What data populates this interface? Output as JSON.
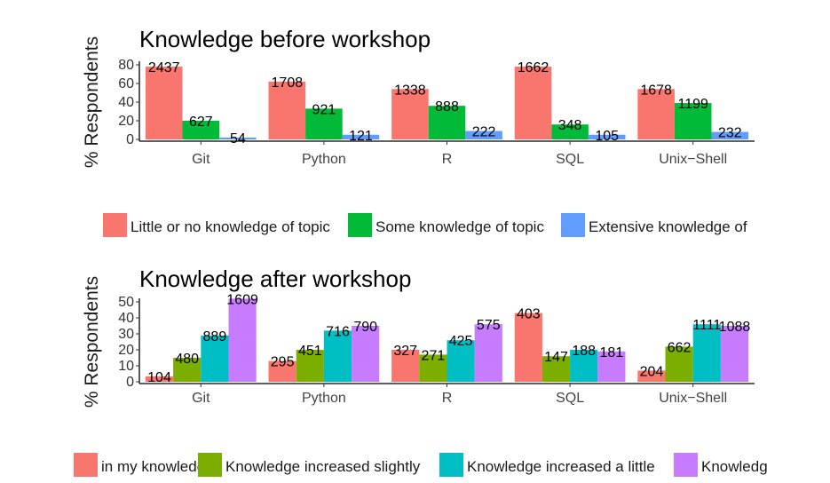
{
  "chart_data": [
    {
      "type": "bar",
      "title": "Knowledge before workshop",
      "xlabel": "",
      "ylabel": "% Respondents",
      "ylim": [
        0,
        80
      ],
      "yticks": [
        0,
        20,
        40,
        60,
        80
      ],
      "grid": false,
      "legend_position": "bottom",
      "categories": [
        "Git",
        "Python",
        "R",
        "SQL",
        "Unix−Shell"
      ],
      "series": [
        {
          "name": "Little or no knowledge of topic",
          "color": "#F8766D",
          "values": [
            78,
            62,
            54,
            78,
            54
          ],
          "labels": [
            "2437",
            "1708",
            "1338",
            "1662",
            "1678"
          ]
        },
        {
          "name": "Some knowledge of topic",
          "color": "#00BA38",
          "values": [
            20,
            33,
            36,
            16,
            39
          ],
          "labels": [
            "627",
            "921",
            "888",
            "348",
            "1199"
          ]
        },
        {
          "name": "Extensive knowledge of",
          "color": "#619CFF",
          "values": [
            2,
            5,
            9,
            5,
            8
          ],
          "labels": [
            "54",
            "121",
            "222",
            "105",
            "232"
          ]
        }
      ]
    },
    {
      "type": "bar",
      "title": "Knowledge after workshop",
      "xlabel": "",
      "ylabel": "% Respondents",
      "ylim": [
        0,
        50
      ],
      "yticks": [
        0,
        10,
        20,
        30,
        40,
        50
      ],
      "grid": false,
      "legend_position": "bottom",
      "categories": [
        "Git",
        "Python",
        "R",
        "SQL",
        "Unix−Shell"
      ],
      "series": [
        {
          "name": "in my knowledge",
          "color": "#F8766D",
          "values": [
            3.4,
            13,
            20,
            43,
            7
          ],
          "labels": [
            "104",
            "295",
            "327",
            "403",
            "204"
          ]
        },
        {
          "name": "Knowledge increased slightly",
          "color": "#7CAE00",
          "values": [
            15,
            20,
            17,
            16,
            22
          ],
          "labels": [
            "480",
            "451",
            "271",
            "147",
            "662"
          ]
        },
        {
          "name": "Knowledge increased a little",
          "color": "#00BFC4",
          "values": [
            29,
            32,
            26,
            20,
            36
          ],
          "labels": [
            "889",
            "716",
            "425",
            "188",
            "1111"
          ]
        },
        {
          "name": "Knowledg",
          "color": "#C77CFF",
          "values": [
            52,
            35,
            36,
            19,
            35
          ],
          "labels": [
            "1609",
            "790",
            "575",
            "181",
            "1088"
          ]
        }
      ]
    }
  ]
}
